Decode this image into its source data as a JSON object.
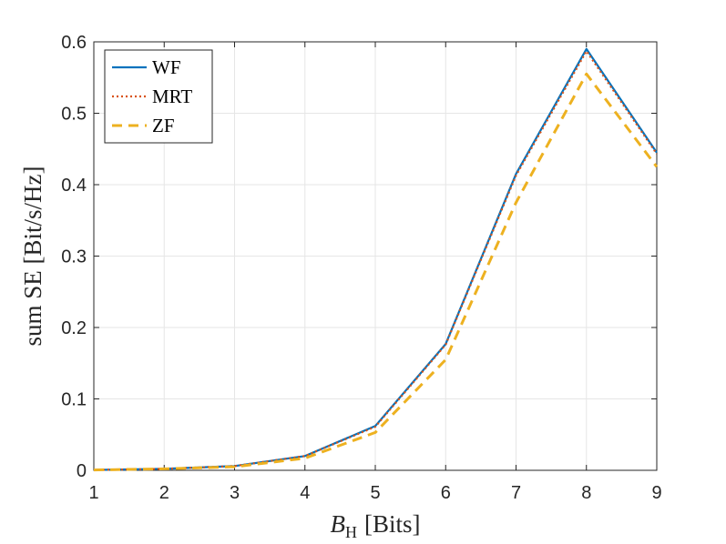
{
  "chart_data": {
    "type": "line",
    "xlabel_main": "B",
    "xlabel_sub": "H",
    "xlabel_rest": "[Bits]",
    "ylabel": "sum SE [Bit/s/Hz]",
    "xlim": [
      1,
      9
    ],
    "ylim": [
      0,
      0.6
    ],
    "xticks": [
      "1",
      "2",
      "3",
      "4",
      "5",
      "6",
      "7",
      "8",
      "9"
    ],
    "yticks": [
      "0",
      "0.1",
      "0.2",
      "0.3",
      "0.4",
      "0.5",
      "0.6"
    ],
    "grid": true,
    "legend_position": "top-left",
    "x": [
      1,
      2,
      3,
      4,
      5,
      6,
      7,
      8,
      9
    ],
    "series": [
      {
        "name": "WF",
        "color": "#0072BD",
        "style": "solid",
        "values": [
          0.0005,
          0.002,
          0.006,
          0.02,
          0.062,
          0.177,
          0.415,
          0.59,
          0.445
        ]
      },
      {
        "name": "MRT",
        "color": "#D95319",
        "style": "dotted",
        "values": [
          0.0005,
          0.002,
          0.006,
          0.02,
          0.061,
          0.176,
          0.413,
          0.587,
          0.443
        ]
      },
      {
        "name": "ZF",
        "color": "#EDB120",
        "style": "dashed",
        "values": [
          0.0005,
          0.002,
          0.005,
          0.017,
          0.053,
          0.155,
          0.375,
          0.555,
          0.425
        ]
      }
    ]
  }
}
